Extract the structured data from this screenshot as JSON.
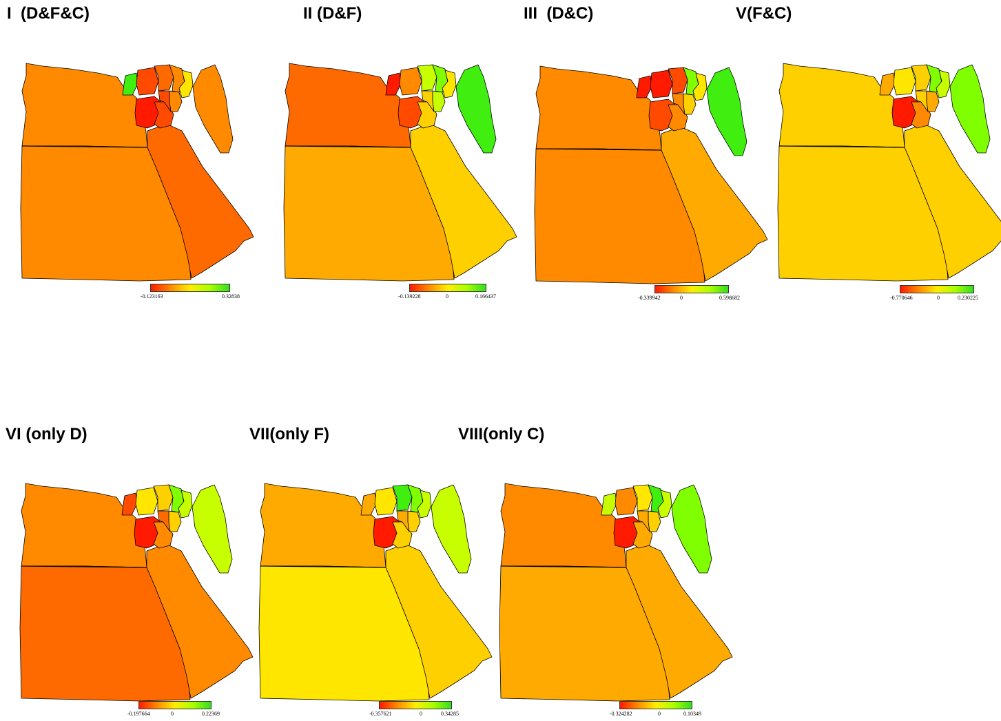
{
  "colors": {
    "red": "#ff1a00",
    "red_orange": "#ff4a00",
    "orange_red": "#ff6a00",
    "orange": "#ff8a00",
    "amber": "#ffaa00",
    "gold": "#ffd000",
    "yellow": "#ffe600",
    "yellow_green": "#c8ff00",
    "lime": "#80ff00",
    "green": "#40ee10",
    "border": "#000000"
  },
  "legend_gradient": [
    "#ff1a00",
    "#ff8a00",
    "#ffee00",
    "#aaff00",
    "#33dd22"
  ],
  "panels": [
    {
      "title": "I  (D&F&C)",
      "legend": {
        "min": "-0.123163",
        "zero": "",
        "max": "0.32838"
      },
      "fills": {
        "west_north": "orange",
        "west_south": "orange",
        "east_desert": "orange_red",
        "sinai": "orange",
        "nile_a": "red",
        "nile_b": "red_orange",
        "delta_w": "green",
        "delta_1": "red_orange",
        "delta_2": "orange_red",
        "delta_3": "orange",
        "delta_4": "yellow",
        "delta_5": "orange",
        "delta_6": "red_orange"
      }
    },
    {
      "title": "II (D&F)",
      "legend": {
        "min": "-0.139228",
        "zero": "0",
        "max": "0.166437"
      },
      "fills": {
        "west_north": "orange_red",
        "west_south": "amber",
        "east_desert": "gold",
        "sinai": "green",
        "nile_a": "red_orange",
        "nile_b": "gold",
        "delta_w": "red",
        "delta_1": "orange",
        "delta_2": "yellow_green",
        "delta_3": "lime",
        "delta_4": "yellow",
        "delta_5": "yellow_green",
        "delta_6": "gold"
      }
    },
    {
      "title": "III  (D&C)",
      "legend": {
        "min": "-0.339942",
        "zero": "0",
        "max": "0.598682"
      },
      "fills": {
        "west_north": "orange",
        "west_south": "orange",
        "east_desert": "amber",
        "sinai": "green",
        "nile_a": "red_orange",
        "nile_b": "orange",
        "delta_w": "red",
        "delta_1": "red",
        "delta_2": "red_orange",
        "delta_3": "lime",
        "delta_4": "yellow",
        "delta_5": "gold",
        "delta_6": "orange"
      }
    },
    {
      "title": "V(F&C)",
      "legend": {
        "min": "-0.770646",
        "zero": "0",
        "max": "0.230225"
      },
      "fills": {
        "west_north": "gold",
        "west_south": "gold",
        "east_desert": "gold",
        "sinai": "lime",
        "nile_a": "red",
        "nile_b": "orange",
        "delta_w": "amber",
        "delta_1": "yellow",
        "delta_2": "gold",
        "delta_3": "lime",
        "delta_4": "yellow_green",
        "delta_5": "amber",
        "delta_6": "gold"
      }
    },
    {
      "title": "VI (only D)",
      "legend": {
        "min": "-0.197664",
        "zero": "0",
        "max": "0.22369"
      },
      "fills": {
        "west_north": "orange",
        "west_south": "orange_red",
        "east_desert": "orange",
        "sinai": "yellow_green",
        "nile_a": "red",
        "nile_b": "orange",
        "delta_w": "red_orange",
        "delta_1": "yellow",
        "delta_2": "gold",
        "delta_3": "lime",
        "delta_4": "yellow_green",
        "delta_5": "gold",
        "delta_6": "orange_red"
      }
    },
    {
      "title": "VII(only F)",
      "legend": {
        "min": "-0.357621",
        "zero": "0",
        "max": "0.34285"
      },
      "fills": {
        "west_north": "amber",
        "west_south": "yellow",
        "east_desert": "gold",
        "sinai": "yellow_green",
        "nile_a": "red",
        "nile_b": "gold",
        "delta_w": "amber",
        "delta_1": "yellow",
        "delta_2": "green",
        "delta_3": "lime",
        "delta_4": "yellow_green",
        "delta_5": "gold",
        "delta_6": "amber"
      }
    },
    {
      "title": "VIII(only C)",
      "legend": {
        "min": "-0.324282",
        "zero": "0",
        "max": "0.10349"
      },
      "fills": {
        "west_north": "orange",
        "west_south": "amber",
        "east_desert": "amber",
        "sinai": "lime",
        "nile_a": "red",
        "nile_b": "amber",
        "delta_w": "yellow_green",
        "delta_1": "orange",
        "delta_2": "yellow",
        "delta_3": "green",
        "delta_4": "yellow_green",
        "delta_5": "gold",
        "delta_6": "amber"
      }
    }
  ]
}
